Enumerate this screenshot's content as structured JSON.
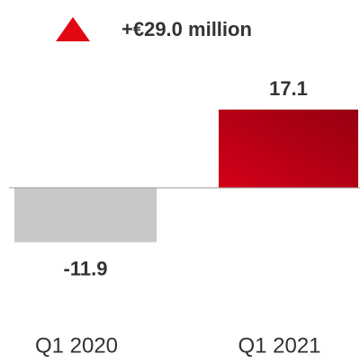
{
  "chart_data": {
    "type": "bar",
    "annotation": "+€29.0 million",
    "categories": [
      "Q1 2020",
      "Q1 2021"
    ],
    "values": [
      -11.9,
      17.1
    ],
    "colors": [
      "#c8c8c8",
      "#d40018"
    ]
  }
}
